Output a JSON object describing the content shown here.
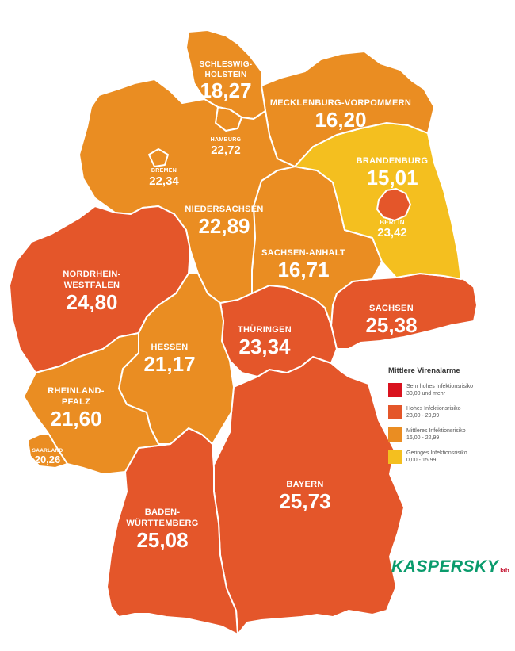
{
  "colors": {
    "very_high": "#d9121e",
    "high": "#e4562a",
    "medium": "#ea8d22",
    "low": "#f4bf1f"
  },
  "states": [
    {
      "key": "sh",
      "name": [
        "SCHLESWIG-",
        "HOLSTEIN"
      ],
      "value": "18,27",
      "level": "medium"
    },
    {
      "key": "hh",
      "name": [
        "HAMBURG"
      ],
      "value": "22,72",
      "level": "medium"
    },
    {
      "key": "mv",
      "name": [
        "MECKLENBURG-VORPOMMERN"
      ],
      "value": "16,20",
      "level": "medium"
    },
    {
      "key": "hb",
      "name": [
        "BREMEN"
      ],
      "value": "22,34",
      "level": "medium"
    },
    {
      "key": "ni",
      "name": [
        "NIEDERSACHSEN"
      ],
      "value": "22,89",
      "level": "medium"
    },
    {
      "key": "bb",
      "name": [
        "BRANDENBURG"
      ],
      "value": "15,01",
      "level": "low"
    },
    {
      "key": "be",
      "name": [
        "BERLIN"
      ],
      "value": "23,42",
      "level": "high"
    },
    {
      "key": "st",
      "name": [
        "SACHSEN-ANHALT"
      ],
      "value": "16,71",
      "level": "medium"
    },
    {
      "key": "nw",
      "name": [
        "NORDRHEIN-",
        "WESTFALEN"
      ],
      "value": "24,80",
      "level": "high"
    },
    {
      "key": "sn",
      "name": [
        "SACHSEN"
      ],
      "value": "25,38",
      "level": "high"
    },
    {
      "key": "he",
      "name": [
        "HESSEN"
      ],
      "value": "21,17",
      "level": "medium"
    },
    {
      "key": "th",
      "name": [
        "THÜRINGEN"
      ],
      "value": "23,34",
      "level": "high"
    },
    {
      "key": "rp",
      "name": [
        "RHEINLAND-",
        "PFALZ"
      ],
      "value": "21,60",
      "level": "medium"
    },
    {
      "key": "sl",
      "name": [
        "SAARLAND"
      ],
      "value": "20,26",
      "level": "medium"
    },
    {
      "key": "by",
      "name": [
        "BAYERN"
      ],
      "value": "25,73",
      "level": "high"
    },
    {
      "key": "bw",
      "name": [
        "BADEN-",
        "WÜRTTEMBERG"
      ],
      "value": "25,08",
      "level": "high"
    }
  ],
  "legend": {
    "title": "Mittlere Virenalarme",
    "items": [
      {
        "level": "very_high",
        "label": "Sehr hohes Infektionsrisiko",
        "range": "30,00 und mehr"
      },
      {
        "level": "high",
        "label": "Hohes Infektionsrisiko",
        "range": "23,00 - 29,99"
      },
      {
        "level": "medium",
        "label": "Mittleres Infektionsrisiko",
        "range": "16,00 - 22,99"
      },
      {
        "level": "low",
        "label": "Geringes Infektionsrisiko",
        "range": "0,00 - 15,99"
      }
    ]
  },
  "logo": {
    "main": "KASPERSKY",
    "sub": "lab"
  }
}
